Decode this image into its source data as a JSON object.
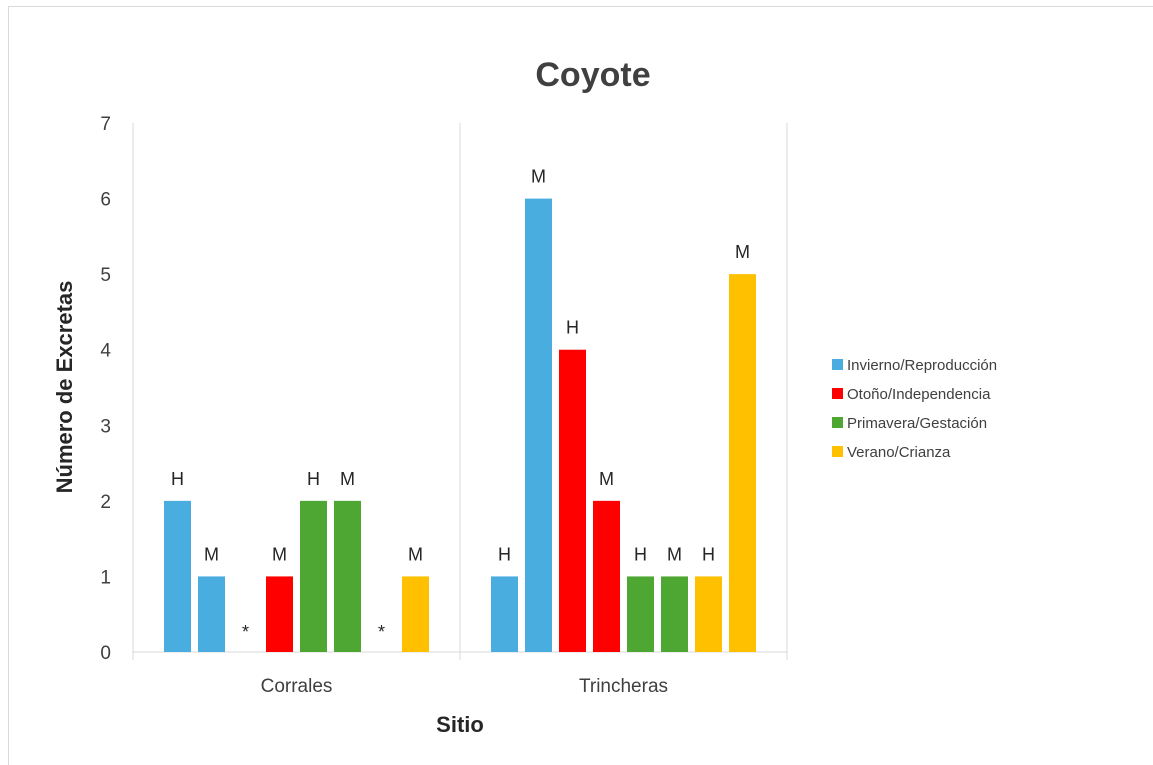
{
  "chart_data": {
    "type": "bar",
    "title": "Coyote",
    "xlabel": "Sitio",
    "ylabel": "Número de Excretas",
    "ylim": [
      0,
      7
    ],
    "yticks": [
      0,
      1,
      2,
      3,
      4,
      5,
      6,
      7
    ],
    "grid": false,
    "legend_position": "right",
    "categories": [
      "Corrales",
      "Trincheras"
    ],
    "series": [
      {
        "name": "Invierno/Reproducción",
        "color": "#4aade0"
      },
      {
        "name": "Otoño/Independencia",
        "color": "#ff0000"
      },
      {
        "name": "Primavera/Gestación",
        "color": "#4ea732"
      },
      {
        "name": "Verano/Crianza",
        "color": "#ffc000"
      }
    ],
    "groups": [
      {
        "category": "Corrales",
        "bars": [
          {
            "series": "Invierno/Reproducción",
            "value": 2,
            "label": "H"
          },
          {
            "series": "Invierno/Reproducción",
            "value": 1,
            "label": "M"
          },
          {
            "series": "Otoño/Independencia",
            "value": 0,
            "label": "*"
          },
          {
            "series": "Otoño/Independencia",
            "value": 1,
            "label": "M"
          },
          {
            "series": "Primavera/Gestación",
            "value": 2,
            "label": "H"
          },
          {
            "series": "Primavera/Gestación",
            "value": 2,
            "label": "M"
          },
          {
            "series": "Verano/Crianza",
            "value": 0,
            "label": "*"
          },
          {
            "series": "Verano/Crianza",
            "value": 1,
            "label": "M"
          }
        ]
      },
      {
        "category": "Trincheras",
        "bars": [
          {
            "series": "Invierno/Reproducción",
            "value": 1,
            "label": "H"
          },
          {
            "series": "Invierno/Reproducción",
            "value": 6,
            "label": "M"
          },
          {
            "series": "Otoño/Independencia",
            "value": 4,
            "label": "H"
          },
          {
            "series": "Otoño/Independencia",
            "value": 2,
            "label": "M"
          },
          {
            "series": "Primavera/Gestación",
            "value": 1,
            "label": "H"
          },
          {
            "series": "Primavera/Gestación",
            "value": 1,
            "label": "M"
          },
          {
            "series": "Verano/Crianza",
            "value": 1,
            "label": "H"
          },
          {
            "series": "Verano/Crianza",
            "value": 5,
            "label": "M"
          }
        ]
      }
    ]
  }
}
